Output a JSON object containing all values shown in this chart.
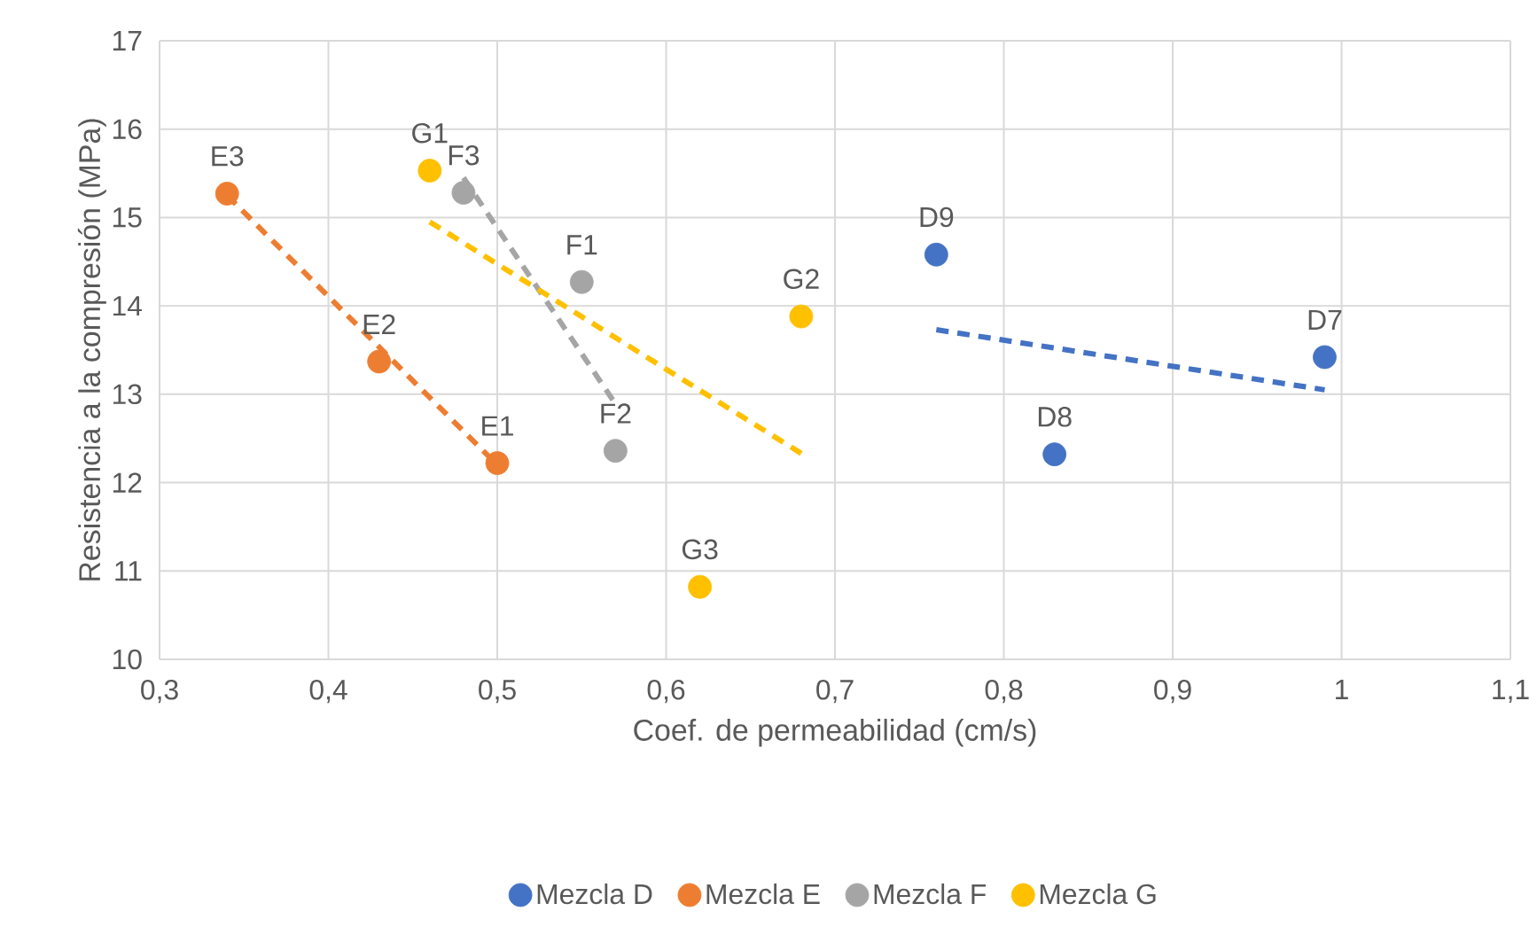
{
  "chart_data": {
    "type": "scatter",
    "xlabel": "Coef. de permeabilidad (cm/s)",
    "ylabel": "Resistencia a la compresión (MPa)",
    "xlim": [
      0.3,
      1.1
    ],
    "ylim": [
      10,
      17
    ],
    "xticks": [
      {
        "value": 0.3,
        "label": "0,3"
      },
      {
        "value": 0.4,
        "label": "0,4"
      },
      {
        "value": 0.5,
        "label": "0,5"
      },
      {
        "value": 0.6,
        "label": "0,6"
      },
      {
        "value": 0.7,
        "label": "0,7"
      },
      {
        "value": 0.8,
        "label": "0,8"
      },
      {
        "value": 0.9,
        "label": "0,9"
      },
      1,
      {
        "value": 1.1,
        "label": "1,1"
      }
    ],
    "yticks": [
      10,
      11,
      12,
      13,
      14,
      15,
      16,
      17
    ],
    "grid": true,
    "legend": "bottom",
    "series": [
      {
        "name": "Mezcla D",
        "color": "#4472c4",
        "type": "scatter",
        "marker": "circle",
        "x": [
          0.76,
          0.83,
          0.99
        ],
        "values": [
          14.58,
          12.32,
          13.42
        ]
      },
      {
        "name": "Mezcla E",
        "color": "#ed7d31",
        "type": "scatter",
        "marker": "circle",
        "x": [
          0.34,
          0.43,
          0.5
        ],
        "values": [
          15.27,
          13.37,
          12.22
        ]
      },
      {
        "name": "Mezcla F",
        "color": "#a5a5a5",
        "type": "scatter",
        "marker": "circle",
        "x": [
          0.48,
          0.55,
          0.57
        ],
        "values": [
          15.28,
          14.27,
          12.36
        ]
      },
      {
        "name": "Mezcla G",
        "color": "#ffc000",
        "type": "scatter",
        "marker": "circle",
        "x": [
          0.46,
          0.68,
          0.62
        ],
        "values": [
          15.53,
          13.88,
          10.82
        ]
      },
      {
        "color": "#4472c4",
        "type": "line",
        "line_style": "dashed",
        "marker": "none",
        "x": [
          0.76,
          0.99
        ],
        "values": [
          13.73,
          13.05
        ]
      },
      {
        "color": "#ed7d31",
        "type": "line",
        "line_style": "dashed",
        "marker": "none",
        "x": [
          0.34,
          0.5
        ],
        "values": [
          15.25,
          12.2
        ]
      },
      {
        "color": "#a5a5a5",
        "type": "line",
        "line_style": "dashed",
        "marker": "none",
        "x": [
          0.48,
          0.57
        ],
        "values": [
          15.45,
          12.89
        ]
      },
      {
        "color": "#ffc000",
        "type": "line",
        "line_style": "dashed",
        "marker": "none",
        "x": [
          0.46,
          0.68
        ],
        "values": [
          14.95,
          12.33
        ]
      }
    ],
    "annotations": [
      {
        "text": "D9",
        "x": 0.76,
        "y": 14.58
      },
      {
        "text": "D8",
        "x": 0.83,
        "y": 12.32
      },
      {
        "text": "D7",
        "x": 0.99,
        "y": 13.42
      },
      {
        "text": "E3",
        "x": 0.34,
        "y": 15.27
      },
      {
        "text": "E2",
        "x": 0.43,
        "y": 13.37
      },
      {
        "text": "E1",
        "x": 0.5,
        "y": 12.22
      },
      {
        "text": "F3",
        "x": 0.48,
        "y": 15.28
      },
      {
        "text": "F1",
        "x": 0.55,
        "y": 14.27
      },
      {
        "text": "F2",
        "x": 0.57,
        "y": 12.36
      },
      {
        "text": "G1",
        "x": 0.46,
        "y": 15.53
      },
      {
        "text": "G2",
        "x": 0.68,
        "y": 13.88
      },
      {
        "text": "G3",
        "x": 0.62,
        "y": 10.82
      }
    ]
  }
}
